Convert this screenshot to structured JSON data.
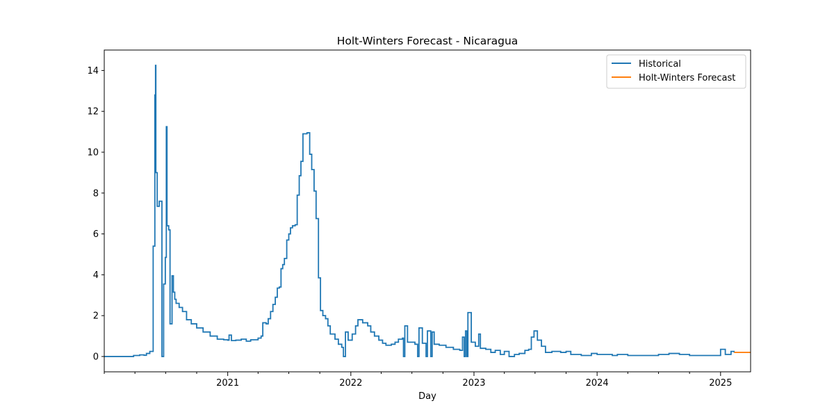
{
  "chart_data": {
    "type": "line",
    "title": "Holt-Winters Forecast - Nicaragua",
    "xlabel": "Day",
    "ylabel": "",
    "xlim": [
      "2020-01-01",
      "2025-03-31"
    ],
    "ylim": [
      -0.75,
      15
    ],
    "x_ticks": [
      "2021",
      "2022",
      "2023",
      "2024",
      "2025"
    ],
    "y_ticks": [
      0,
      2,
      4,
      6,
      8,
      10,
      12,
      14
    ],
    "grid": false,
    "legend_position": "top-right",
    "series": [
      {
        "name": "Historical",
        "color": "#1f77b4",
        "points": [
          [
            "2020-01-01",
            0
          ],
          [
            "2020-03-15",
            0
          ],
          [
            "2020-03-28",
            0.05
          ],
          [
            "2020-04-15",
            0.08
          ],
          [
            "2020-04-28",
            0.06
          ],
          [
            "2020-05-05",
            0.15
          ],
          [
            "2020-05-15",
            0.25
          ],
          [
            "2020-05-25",
            5.4
          ],
          [
            "2020-05-30",
            12.8
          ],
          [
            "2020-06-01",
            14.25
          ],
          [
            "2020-06-02",
            9.0
          ],
          [
            "2020-06-05",
            9.0
          ],
          [
            "2020-06-06",
            7.35
          ],
          [
            "2020-06-12",
            7.6
          ],
          [
            "2020-06-18",
            7.6
          ],
          [
            "2020-06-20",
            0
          ],
          [
            "2020-06-22",
            0
          ],
          [
            "2020-06-25",
            3.55
          ],
          [
            "2020-06-30",
            4.85
          ],
          [
            "2020-07-03",
            11.25
          ],
          [
            "2020-07-05",
            6.4
          ],
          [
            "2020-07-10",
            6.2
          ],
          [
            "2020-07-14",
            1.6
          ],
          [
            "2020-07-18",
            1.6
          ],
          [
            "2020-07-20",
            3.95
          ],
          [
            "2020-07-24",
            3.15
          ],
          [
            "2020-07-28",
            2.8
          ],
          [
            "2020-08-01",
            2.6
          ],
          [
            "2020-08-10",
            2.4
          ],
          [
            "2020-08-20",
            2.2
          ],
          [
            "2020-09-01",
            1.8
          ],
          [
            "2020-09-15",
            1.6
          ],
          [
            "2020-10-01",
            1.4
          ],
          [
            "2020-10-20",
            1.2
          ],
          [
            "2020-11-10",
            1.0
          ],
          [
            "2020-12-01",
            0.85
          ],
          [
            "2020-12-20",
            0.82
          ],
          [
            "2021-01-01",
            0.8
          ],
          [
            "2021-01-05",
            1.05
          ],
          [
            "2021-01-12",
            0.78
          ],
          [
            "2021-01-25",
            0.8
          ],
          [
            "2021-02-10",
            0.85
          ],
          [
            "2021-02-25",
            0.75
          ],
          [
            "2021-03-10",
            0.82
          ],
          [
            "2021-04-01",
            0.9
          ],
          [
            "2021-04-10",
            1.0
          ],
          [
            "2021-04-15",
            1.65
          ],
          [
            "2021-04-25",
            1.6
          ],
          [
            "2021-05-01",
            1.85
          ],
          [
            "2021-05-08",
            2.2
          ],
          [
            "2021-05-15",
            2.55
          ],
          [
            "2021-05-22",
            2.9
          ],
          [
            "2021-05-28",
            3.35
          ],
          [
            "2021-06-03",
            3.4
          ],
          [
            "2021-06-08",
            4.3
          ],
          [
            "2021-06-13",
            4.5
          ],
          [
            "2021-06-18",
            4.8
          ],
          [
            "2021-06-25",
            5.7
          ],
          [
            "2021-07-01",
            6.0
          ],
          [
            "2021-07-06",
            6.3
          ],
          [
            "2021-07-12",
            6.4
          ],
          [
            "2021-07-20",
            6.45
          ],
          [
            "2021-07-26",
            7.9
          ],
          [
            "2021-08-01",
            8.85
          ],
          [
            "2021-08-06",
            9.55
          ],
          [
            "2021-08-12",
            10.9
          ],
          [
            "2021-08-24",
            10.95
          ],
          [
            "2021-09-01",
            9.9
          ],
          [
            "2021-09-07",
            9.15
          ],
          [
            "2021-09-14",
            8.1
          ],
          [
            "2021-09-20",
            6.75
          ],
          [
            "2021-09-27",
            3.85
          ],
          [
            "2021-10-03",
            2.25
          ],
          [
            "2021-10-10",
            2.0
          ],
          [
            "2021-10-18",
            1.85
          ],
          [
            "2021-10-25",
            1.5
          ],
          [
            "2021-11-01",
            1.1
          ],
          [
            "2021-11-15",
            0.85
          ],
          [
            "2021-11-25",
            0.6
          ],
          [
            "2021-12-05",
            0.45
          ],
          [
            "2021-12-10",
            0
          ],
          [
            "2021-12-14",
            0
          ],
          [
            "2021-12-16",
            1.2
          ],
          [
            "2021-12-24",
            0.8
          ],
          [
            "2022-01-05",
            1.1
          ],
          [
            "2022-01-15",
            1.5
          ],
          [
            "2022-01-22",
            1.8
          ],
          [
            "2022-02-05",
            1.65
          ],
          [
            "2022-02-20",
            1.5
          ],
          [
            "2022-03-01",
            1.2
          ],
          [
            "2022-03-12",
            1.0
          ],
          [
            "2022-03-25",
            0.8
          ],
          [
            "2022-04-05",
            0.65
          ],
          [
            "2022-04-15",
            0.55
          ],
          [
            "2022-05-01",
            0.6
          ],
          [
            "2022-05-12",
            0.7
          ],
          [
            "2022-05-22",
            0.85
          ],
          [
            "2022-06-03",
            0.9
          ],
          [
            "2022-06-06",
            0
          ],
          [
            "2022-06-10",
            1.5
          ],
          [
            "2022-06-18",
            0.7
          ],
          [
            "2022-07-10",
            0.6
          ],
          [
            "2022-07-18",
            0
          ],
          [
            "2022-07-22",
            1.4
          ],
          [
            "2022-08-01",
            0.65
          ],
          [
            "2022-08-12",
            0
          ],
          [
            "2022-08-16",
            1.25
          ],
          [
            "2022-08-26",
            0
          ],
          [
            "2022-08-30",
            1.2
          ],
          [
            "2022-09-05",
            0.6
          ],
          [
            "2022-09-20",
            0.55
          ],
          [
            "2022-10-10",
            0.45
          ],
          [
            "2022-11-01",
            0.35
          ],
          [
            "2022-11-20",
            0.3
          ],
          [
            "2022-11-28",
            0.95
          ],
          [
            "2022-12-03",
            0
          ],
          [
            "2022-12-07",
            1.25
          ],
          [
            "2022-12-11",
            0
          ],
          [
            "2022-12-14",
            2.15
          ],
          [
            "2022-12-24",
            0.7
          ],
          [
            "2023-01-05",
            0.5
          ],
          [
            "2023-01-15",
            1.1
          ],
          [
            "2023-01-20",
            0.4
          ],
          [
            "2023-02-05",
            0.35
          ],
          [
            "2023-02-20",
            0.2
          ],
          [
            "2023-03-05",
            0.3
          ],
          [
            "2023-03-20",
            0.1
          ],
          [
            "2023-04-01",
            0.25
          ],
          [
            "2023-04-15",
            0
          ],
          [
            "2023-05-01",
            0.1
          ],
          [
            "2023-05-15",
            0.15
          ],
          [
            "2023-06-01",
            0.3
          ],
          [
            "2023-06-12",
            0.35
          ],
          [
            "2023-06-20",
            0.95
          ],
          [
            "2023-06-28",
            1.25
          ],
          [
            "2023-07-08",
            0.8
          ],
          [
            "2023-07-20",
            0.5
          ],
          [
            "2023-08-01",
            0.2
          ],
          [
            "2023-08-20",
            0.25
          ],
          [
            "2023-09-15",
            0.2
          ],
          [
            "2023-10-01",
            0.25
          ],
          [
            "2023-10-15",
            0.1
          ],
          [
            "2023-11-15",
            0.05
          ],
          [
            "2023-12-15",
            0.15
          ],
          [
            "2024-01-01",
            0.1
          ],
          [
            "2024-02-15",
            0.05
          ],
          [
            "2024-03-01",
            0.1
          ],
          [
            "2024-04-01",
            0.05
          ],
          [
            "2024-06-01",
            0.05
          ],
          [
            "2024-07-01",
            0.1
          ],
          [
            "2024-08-01",
            0.15
          ],
          [
            "2024-09-01",
            0.1
          ],
          [
            "2024-10-01",
            0.05
          ],
          [
            "2024-11-01",
            0.05
          ],
          [
            "2024-12-15",
            0.05
          ],
          [
            "2025-01-01",
            0.35
          ],
          [
            "2025-01-15",
            0.1
          ],
          [
            "2025-02-01",
            0.25
          ],
          [
            "2025-02-10",
            0.2
          ]
        ]
      },
      {
        "name": "Holt-Winters Forecast",
        "color": "#ff7f0e",
        "points": [
          [
            "2025-02-10",
            0.2
          ],
          [
            "2025-03-31",
            0.2
          ]
        ]
      }
    ]
  }
}
